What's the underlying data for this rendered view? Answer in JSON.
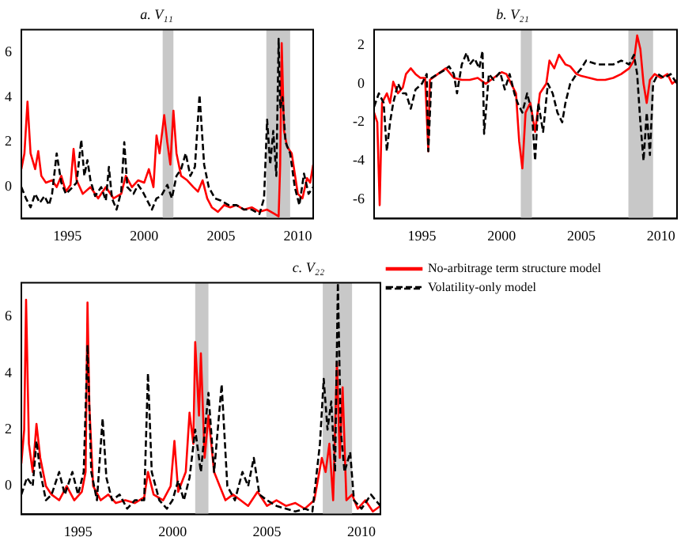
{
  "chart_data": [
    {
      "type": "line",
      "title": "a. V₁₁",
      "xlim": [
        1992,
        2011
      ],
      "xticks": [
        1995,
        2000,
        2005,
        2010
      ],
      "ylim": [
        -1.4,
        7
      ],
      "yticks": [
        0,
        2,
        4,
        6
      ],
      "grid": false,
      "legend": false,
      "marker": "none",
      "bands": [
        {
          "axis": "x",
          "from": 2001.2,
          "to": 2001.9,
          "color": "#c8c8c8"
        },
        {
          "axis": "x",
          "from": 2007.95,
          "to": 2009.5,
          "color": "#c8c8c8"
        }
      ],
      "series": [
        {
          "color": "#ff0000",
          "line_style": "solid",
          "x": [
            1992.0,
            1992.2,
            1992.4,
            1992.6,
            1992.9,
            1993.1,
            1993.3,
            1993.6,
            1994.0,
            1994.3,
            1994.6,
            1994.9,
            1995.2,
            1995.4,
            1995.6,
            1996.0,
            1996.5,
            1997.0,
            1997.5,
            1998.0,
            1998.5,
            1998.8,
            1999.2,
            1999.6,
            2000.0,
            2000.3,
            2000.6,
            2000.8,
            2001.0,
            2001.3,
            2001.5,
            2001.7,
            2001.9,
            2002.1,
            2002.4,
            2002.8,
            2003.2,
            2003.5,
            2003.8,
            2004.1,
            2004.4,
            2004.8,
            2005.2,
            2005.6,
            2006.0,
            2006.5,
            2007.0,
            2007.5,
            2008.0,
            2008.5,
            2008.75,
            2008.85,
            2008.95,
            2009.1,
            2009.3,
            2009.6,
            2010.0,
            2010.3,
            2010.6,
            2010.8,
            2011.0
          ],
          "values": [
            0.8,
            1.5,
            3.8,
            1.5,
            0.8,
            1.6,
            0.5,
            0.2,
            0.3,
            0.0,
            0.5,
            -0.2,
            0.1,
            1.7,
            0.3,
            -0.3,
            0.0,
            -0.5,
            0.0,
            -0.5,
            -0.3,
            0.5,
            0.0,
            0.3,
            0.2,
            0.8,
            0.0,
            2.3,
            1.5,
            3.2,
            2.0,
            1.0,
            3.4,
            1.5,
            0.5,
            0.3,
            0.0,
            -0.2,
            0.3,
            -0.5,
            -0.9,
            -1.1,
            -0.8,
            -0.9,
            -0.8,
            -1.0,
            -0.9,
            -1.1,
            -1.0,
            -1.2,
            -1.3,
            1.0,
            6.4,
            2.5,
            1.8,
            1.5,
            -0.3,
            -0.5,
            0.4,
            0.2,
            1.0
          ]
        },
        {
          "color": "#000000",
          "line_style": "dashed",
          "x": [
            1992.0,
            1992.3,
            1992.6,
            1992.9,
            1993.2,
            1993.5,
            1993.8,
            1994.0,
            1994.3,
            1994.6,
            1994.9,
            1995.2,
            1995.6,
            1995.9,
            1996.1,
            1996.3,
            1996.5,
            1996.8,
            1997.2,
            1997.5,
            1997.7,
            1997.9,
            1998.2,
            1998.5,
            1998.7,
            1998.9,
            1999.3,
            1999.6,
            1999.9,
            2000.2,
            2000.5,
            2000.8,
            2001.1,
            2001.5,
            2001.8,
            2002.1,
            2002.4,
            2002.7,
            2003.0,
            2003.3,
            2003.6,
            2003.9,
            2004.2,
            2004.6,
            2005.0,
            2005.5,
            2006.0,
            2006.5,
            2007.0,
            2007.5,
            2007.8,
            2008.0,
            2008.2,
            2008.4,
            2008.6,
            2008.75,
            2008.85,
            2009.0,
            2009.2,
            2009.5,
            2009.8,
            2010.1,
            2010.4,
            2010.7,
            2011.0
          ],
          "values": [
            0.0,
            -0.5,
            -0.9,
            -0.3,
            -0.7,
            -0.4,
            -0.8,
            -0.3,
            1.5,
            0.2,
            -0.3,
            -0.1,
            0.2,
            2.1,
            0.5,
            1.2,
            0.3,
            -0.4,
            0.0,
            -0.6,
            0.9,
            -0.5,
            -1.0,
            -0.2,
            2.0,
            0.0,
            -0.3,
            0.1,
            -0.2,
            -0.6,
            -1.0,
            -0.5,
            -0.4,
            0.1,
            -0.5,
            0.5,
            0.8,
            1.5,
            0.5,
            0.9,
            4.1,
            1.0,
            0.0,
            -0.5,
            -0.6,
            -0.8,
            -0.8,
            -1.0,
            -1.0,
            -1.2,
            -0.5,
            3.0,
            1.0,
            2.5,
            0.5,
            6.6,
            3.5,
            4.0,
            2.0,
            1.5,
            0.0,
            -0.8,
            0.6,
            -0.3,
            0.0
          ]
        }
      ]
    },
    {
      "type": "line",
      "title": "b. V₂₁",
      "xlim": [
        1992,
        2011
      ],
      "xticks": [
        1995,
        2000,
        2005,
        2010
      ],
      "ylim": [
        -7,
        2.8
      ],
      "yticks": [
        -6,
        -4,
        -2,
        0,
        2
      ],
      "grid": false,
      "legend": false,
      "marker": "none",
      "bands": [
        {
          "axis": "x",
          "from": 2001.2,
          "to": 2001.9,
          "color": "#c8c8c8"
        },
        {
          "axis": "x",
          "from": 2007.95,
          "to": 2009.5,
          "color": "#c8c8c8"
        }
      ],
      "series": [
        {
          "color": "#ff0000",
          "line_style": "solid",
          "x": [
            1992.0,
            1992.2,
            1992.35,
            1992.5,
            1992.8,
            1993.0,
            1993.2,
            1993.5,
            1993.8,
            1994.0,
            1994.3,
            1994.6,
            1994.9,
            1995.2,
            1995.4,
            1995.5,
            1996.0,
            1996.5,
            1997.0,
            1997.5,
            1998.0,
            1998.5,
            1999.0,
            1999.5,
            2000.0,
            2000.3,
            2000.6,
            2000.9,
            2001.1,
            2001.3,
            2001.5,
            2001.8,
            2002.1,
            2002.4,
            2002.8,
            2003.0,
            2003.3,
            2003.6,
            2004.0,
            2004.3,
            2004.7,
            2005.0,
            2005.5,
            2006.0,
            2006.5,
            2007.0,
            2007.5,
            2008.0,
            2008.3,
            2008.5,
            2008.7,
            2008.9,
            2009.1,
            2009.3,
            2009.6,
            2010.0,
            2010.4,
            2010.7,
            2011.0
          ],
          "values": [
            -1.5,
            -2.0,
            -6.3,
            -1.0,
            -0.5,
            -1.0,
            0.1,
            -0.5,
            -0.2,
            0.5,
            0.8,
            0.5,
            0.3,
            0.3,
            -3.5,
            0.2,
            0.5,
            0.8,
            0.3,
            0.2,
            0.2,
            0.3,
            0.0,
            0.3,
            0.6,
            0.5,
            0.0,
            -0.5,
            -3.0,
            -4.4,
            -1.5,
            -1.0,
            -2.5,
            -0.5,
            0.0,
            1.2,
            0.8,
            1.5,
            1.0,
            0.9,
            0.5,
            0.4,
            0.3,
            0.2,
            0.2,
            0.3,
            0.5,
            0.8,
            1.2,
            2.5,
            1.8,
            0.0,
            -1.0,
            0.2,
            0.5,
            0.3,
            0.5,
            0.0,
            0.2
          ]
        },
        {
          "color": "#000000",
          "line_style": "dashed",
          "x": [
            1992.0,
            1992.3,
            1992.6,
            1992.8,
            1993.0,
            1993.2,
            1993.5,
            1993.8,
            1994.0,
            1994.3,
            1994.6,
            1995.0,
            1995.3,
            1995.4,
            1995.6,
            1996.0,
            1996.4,
            1996.7,
            1997.0,
            1997.2,
            1997.5,
            1997.8,
            1998.0,
            1998.3,
            1998.6,
            1998.8,
            1998.9,
            1999.2,
            1999.5,
            1999.9,
            2000.2,
            2000.5,
            2000.8,
            2001.0,
            2001.3,
            2001.6,
            2001.9,
            2002.1,
            2002.3,
            2002.6,
            2002.9,
            2003.2,
            2003.5,
            2003.8,
            2004.0,
            2004.3,
            2004.7,
            2005.0,
            2005.3,
            2006.0,
            2006.5,
            2007.0,
            2007.5,
            2008.0,
            2008.3,
            2008.5,
            2008.7,
            2008.9,
            2009.1,
            2009.3,
            2009.5,
            2009.8,
            2010.2,
            2010.6,
            2011.0
          ],
          "values": [
            -1.2,
            -0.5,
            -1.0,
            -3.5,
            -2.0,
            -1.0,
            0.0,
            -0.5,
            -0.5,
            -1.3,
            -0.3,
            0.0,
            0.5,
            -3.5,
            0.3,
            0.5,
            0.7,
            0.9,
            0.5,
            -0.5,
            1.0,
            1.6,
            1.0,
            1.3,
            0.8,
            1.7,
            -2.6,
            0.5,
            0.2,
            0.6,
            -0.3,
            0.5,
            -0.5,
            -1.0,
            -1.5,
            -0.5,
            -1.5,
            -4.0,
            -1.0,
            -2.5,
            0.0,
            -0.5,
            -1.5,
            -2.0,
            -1.0,
            0.0,
            0.5,
            0.8,
            1.2,
            1.0,
            1.0,
            1.0,
            1.2,
            1.0,
            1.5,
            0.5,
            -2.0,
            -4.0,
            -1.5,
            -3.7,
            0.0,
            0.5,
            0.3,
            0.5,
            0.0
          ]
        }
      ]
    },
    {
      "type": "line",
      "title": "c. V₂₂",
      "xlim": [
        1992,
        2011
      ],
      "xticks": [
        1995,
        2000,
        2005,
        2010
      ],
      "ylim": [
        -1,
        7.2
      ],
      "yticks": [
        0,
        2,
        4,
        6
      ],
      "grid": false,
      "legend": "right",
      "marker": "none",
      "bands": [
        {
          "axis": "x",
          "from": 2001.2,
          "to": 2001.9,
          "color": "#c8c8c8"
        },
        {
          "axis": "x",
          "from": 2007.95,
          "to": 2009.5,
          "color": "#c8c8c8"
        }
      ],
      "series": [
        {
          "name": "No-arbitrage term structure model",
          "color": "#ff0000",
          "line_style": "solid",
          "x": [
            1992.0,
            1992.15,
            1992.25,
            1992.4,
            1992.6,
            1992.8,
            1993.0,
            1993.3,
            1993.6,
            1994.0,
            1994.4,
            1994.8,
            1995.2,
            1995.4,
            1995.5,
            1995.6,
            1995.8,
            1996.2,
            1996.6,
            1997.0,
            1997.5,
            1998.0,
            1998.5,
            1998.7,
            1999.0,
            1999.5,
            1999.9,
            2000.1,
            2000.3,
            2000.7,
            2000.9,
            2001.1,
            2001.2,
            2001.4,
            2001.5,
            2001.7,
            2001.9,
            2002.2,
            2002.5,
            2002.8,
            2003.2,
            2003.6,
            2004.0,
            2004.5,
            2005.0,
            2005.5,
            2006.0,
            2006.5,
            2007.0,
            2007.5,
            2007.9,
            2008.1,
            2008.3,
            2008.5,
            2008.7,
            2008.85,
            2009.0,
            2009.2,
            2009.5,
            2009.8,
            2010.2,
            2010.6,
            2011.0
          ],
          "values": [
            0.8,
            2.0,
            6.6,
            1.5,
            0.5,
            2.2,
            1.0,
            0.0,
            -0.3,
            -0.5,
            0.0,
            -0.5,
            -0.2,
            0.5,
            6.5,
            2.8,
            0.0,
            -0.5,
            -0.3,
            -0.6,
            -0.5,
            -0.6,
            -0.4,
            0.5,
            -0.3,
            -0.5,
            0.0,
            1.6,
            -0.2,
            0.5,
            2.6,
            1.5,
            5.1,
            2.5,
            4.7,
            1.0,
            2.5,
            0.5,
            0.0,
            -0.5,
            -0.3,
            -0.5,
            -0.7,
            -0.2,
            -0.7,
            -0.5,
            -0.7,
            -0.6,
            -0.8,
            -0.5,
            1.0,
            0.5,
            1.5,
            -0.5,
            4.4,
            1.0,
            3.5,
            -0.5,
            -0.3,
            -0.8,
            -0.5,
            -0.9,
            -0.7
          ]
        },
        {
          "name": "Volatility-only model",
          "color": "#000000",
          "line_style": "dashed",
          "x": [
            1992.0,
            1992.3,
            1992.6,
            1992.8,
            1993.0,
            1993.3,
            1993.6,
            1994.0,
            1994.3,
            1994.7,
            1995.0,
            1995.3,
            1995.5,
            1995.7,
            1996.0,
            1996.3,
            1996.5,
            1996.8,
            1997.2,
            1997.6,
            1998.0,
            1998.5,
            1998.7,
            1998.9,
            1999.3,
            1999.7,
            2000.0,
            2000.3,
            2000.6,
            2000.9,
            2001.2,
            2001.5,
            2001.9,
            2002.2,
            2002.6,
            2002.9,
            2003.3,
            2003.7,
            2004.0,
            2004.3,
            2004.6,
            2005.0,
            2005.5,
            2006.0,
            2006.5,
            2007.0,
            2007.4,
            2007.8,
            2008.0,
            2008.2,
            2008.4,
            2008.6,
            2008.75,
            2008.9,
            2009.1,
            2009.4,
            2009.6,
            2010.0,
            2010.5,
            2011.0
          ],
          "values": [
            -0.3,
            0.3,
            0.0,
            1.6,
            0.5,
            -0.5,
            -0.3,
            0.5,
            -0.3,
            0.5,
            -0.3,
            0.5,
            5.0,
            0.5,
            -0.5,
            2.4,
            0.3,
            -0.5,
            -0.3,
            -0.8,
            -0.5,
            -0.5,
            4.0,
            0.5,
            -0.5,
            -0.8,
            -0.5,
            0.2,
            -0.5,
            0.3,
            2.0,
            0.5,
            3.3,
            0.5,
            3.6,
            0.0,
            -0.5,
            0.5,
            0.0,
            1.0,
            -0.3,
            -0.5,
            -0.7,
            -0.8,
            -0.9,
            -0.8,
            -0.9,
            1.5,
            3.8,
            2.0,
            3.0,
            0.5,
            7.2,
            2.0,
            0.5,
            1.2,
            -0.5,
            -0.8,
            -0.3,
            -0.7
          ]
        }
      ]
    }
  ]
}
